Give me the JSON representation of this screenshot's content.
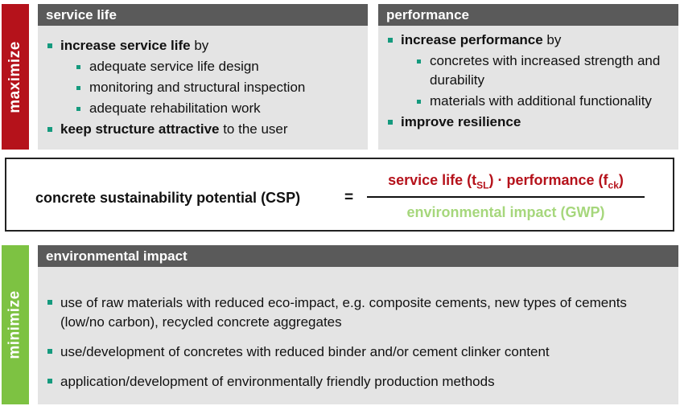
{
  "side_labels": {
    "maximize": "maximize",
    "minimize": "minimize"
  },
  "service_life": {
    "title": "service life",
    "item1_bold": "increase service life",
    "item1_rest": " by",
    "subitems": [
      "adequate service life design",
      "monitoring and structural inspection",
      "adequate rehabilitation work"
    ],
    "item2_bold": "keep structure attractive",
    "item2_rest": " to the user"
  },
  "performance": {
    "title": "performance",
    "item1_bold": "increase performance",
    "item1_rest": " by",
    "subitems": [
      "concretes with increased strength and durability",
      "materials with additional functionality"
    ],
    "item2_bold": "improve resilience"
  },
  "formula": {
    "label": "concrete sustainability potential (CSP)",
    "equals": "=",
    "numer_a": "service life (t",
    "numer_a_sub": "SL",
    "numer_dot": ") · performance (f",
    "numer_b_sub": "ck",
    "numer_end": ")",
    "denominator": "environmental impact (GWP)",
    "colors": {
      "numerator": "#b5121b",
      "denominator": "#a6d77c"
    }
  },
  "environmental_impact": {
    "title": "environmental impact",
    "items": [
      "use of raw materials with reduced eco-impact, e.g. composite cements, new types of cements (low/no carbon), recycled concrete aggregates",
      "use/development of concretes with reduced binder and/or cement clinker content",
      "application/development of environmentally friendly production methods"
    ]
  },
  "colors": {
    "maximize_tab": "#b5121b",
    "minimize_tab": "#7dc242",
    "header": "#5a5a5a",
    "panel": "#e4e4e4",
    "bullet": "#159a7e"
  }
}
